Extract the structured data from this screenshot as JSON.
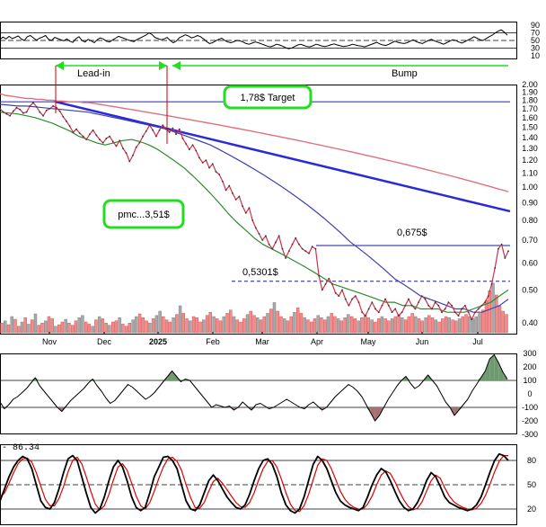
{
  "colors": {
    "price": "#d1304a",
    "ma_long": "#e2707a",
    "ma_mid": "#3f3fb0",
    "ma_short": "#2e8a2e",
    "trend": "#2b2bd6",
    "target_line": "#3a3ae0",
    "volume_up": "#a8a8a8",
    "volume_down": "#f08c8c",
    "box": "#22dd22",
    "arrow": "#22dd22",
    "event_line": "#cc0000",
    "fill_pos": "#6f9a6f",
    "fill_neg": "#a77070",
    "stoch_k": "#000000",
    "stoch_d": "#dd0000",
    "grid": "#c8c8c8"
  },
  "chart_data": [
    {
      "type": "line",
      "name": "rsi-panel",
      "ylim": [
        0,
        100
      ],
      "yticks": [
        "90",
        "70",
        "50",
        "30",
        "10"
      ],
      "levels": [
        70,
        50,
        30
      ],
      "values": [
        53,
        59,
        54,
        61,
        55,
        58,
        62,
        54,
        50,
        60,
        63,
        57,
        51,
        56,
        59,
        63,
        53,
        50,
        58,
        55,
        52,
        49,
        54,
        48,
        45,
        55,
        60,
        50,
        46,
        53,
        49,
        44,
        52,
        57,
        54,
        48,
        46,
        51,
        56,
        61,
        58,
        55,
        52,
        49,
        47,
        52,
        56,
        60,
        64,
        70,
        66,
        58,
        55,
        52,
        54,
        58,
        50,
        44,
        48,
        57,
        61,
        65,
        62,
        57,
        59,
        63,
        60,
        54,
        47,
        42,
        44,
        49,
        53,
        56,
        50,
        46,
        44,
        47,
        50,
        49,
        46,
        42,
        40,
        43,
        46,
        44,
        41,
        38,
        35,
        33,
        36,
        40,
        38,
        35,
        31,
        28,
        30,
        34,
        38,
        40,
        37,
        34,
        33,
        36,
        40,
        38,
        35,
        34,
        36,
        39,
        41,
        38,
        36,
        34,
        35,
        37,
        40,
        38,
        36,
        35,
        33,
        36,
        39,
        42,
        45,
        41,
        38,
        37,
        40,
        44,
        48,
        45,
        43,
        42,
        44,
        48,
        52,
        47,
        44,
        42,
        46,
        50,
        53,
        49,
        46,
        43,
        40,
        44,
        48,
        52,
        50,
        46,
        43,
        47,
        51,
        55,
        60,
        56,
        52,
        50,
        55,
        60,
        64,
        70,
        75,
        78,
        72,
        64
      ]
    },
    {
      "type": "line",
      "name": "price-panel",
      "ylim": [
        0.37,
        2.0
      ],
      "log_scale": true,
      "yticks": [
        "2.00",
        "1.90",
        "1.80",
        "1.70",
        "1.60",
        "1.50",
        "1.40",
        "1.30",
        "1.20",
        "1.10",
        "1.00",
        "0.90",
        "0.80",
        "0.70",
        "0.60",
        "0.50",
        "0.40"
      ],
      "xticks": [
        "Nov",
        "Dec",
        "2025",
        "Feb",
        "Mar",
        "Apr",
        "May",
        "Jun",
        "Jul"
      ],
      "price": [
        1.7,
        1.66,
        1.64,
        1.62,
        1.67,
        1.71,
        1.69,
        1.65,
        1.66,
        1.73,
        1.77,
        1.72,
        1.66,
        1.62,
        1.68,
        1.7,
        1.73,
        1.71,
        1.67,
        1.61,
        1.56,
        1.51,
        1.45,
        1.48,
        1.44,
        1.41,
        1.38,
        1.43,
        1.47,
        1.42,
        1.38,
        1.35,
        1.39,
        1.41,
        1.36,
        1.32,
        1.37,
        1.3,
        1.26,
        1.19,
        1.24,
        1.31,
        1.35,
        1.41,
        1.46,
        1.52,
        1.47,
        1.41,
        1.47,
        1.52,
        1.48,
        1.45,
        1.49,
        1.43,
        1.48,
        1.39,
        1.34,
        1.29,
        1.33,
        1.28,
        1.22,
        1.18,
        1.2,
        1.14,
        1.17,
        1.11,
        1.09,
        1.04,
        0.98,
        1.01,
        0.96,
        0.92,
        0.94,
        0.88,
        0.84,
        0.87,
        0.8,
        0.76,
        0.73,
        0.7,
        0.72,
        0.68,
        0.66,
        0.69,
        0.72,
        0.66,
        0.62,
        0.65,
        0.68,
        0.71,
        0.68,
        0.66,
        0.65,
        0.64,
        0.67,
        0.66,
        0.55,
        0.5,
        0.52,
        0.54,
        0.52,
        0.49,
        0.48,
        0.5,
        0.47,
        0.45,
        0.47,
        0.48,
        0.46,
        0.43,
        0.42,
        0.44,
        0.46,
        0.44,
        0.43,
        0.45,
        0.47,
        0.45,
        0.43,
        0.44,
        0.42,
        0.43,
        0.45,
        0.47,
        0.45,
        0.44,
        0.46,
        0.48,
        0.47,
        0.45,
        0.44,
        0.46,
        0.45,
        0.43,
        0.44,
        0.46,
        0.45,
        0.43,
        0.42,
        0.44,
        0.45,
        0.43,
        0.41,
        0.43,
        0.44,
        0.45,
        0.46,
        0.48,
        0.52,
        0.58,
        0.66,
        0.68,
        0.62,
        0.65
      ],
      "ma_long": [
        1.88,
        1.86,
        1.85,
        1.84,
        1.83,
        1.82,
        1.82,
        1.81,
        1.81,
        1.8,
        1.8,
        1.79,
        1.79,
        1.78,
        1.78,
        1.78,
        1.77,
        1.77,
        1.76,
        1.75,
        1.74,
        1.73,
        1.72,
        1.71,
        1.7,
        1.69,
        1.68,
        1.67,
        1.66,
        1.65,
        1.64,
        1.63,
        1.62,
        1.61,
        1.6,
        1.59,
        1.58,
        1.57,
        1.56,
        1.55,
        1.54,
        1.53,
        1.52,
        1.51,
        1.5,
        1.49,
        1.48,
        1.47,
        1.46,
        1.45,
        1.44,
        1.43,
        1.42,
        1.41,
        1.4,
        1.39,
        1.38,
        1.37,
        1.36,
        1.35,
        1.34,
        1.33,
        1.32,
        1.31,
        1.3,
        1.29,
        1.28,
        1.27,
        1.26,
        1.25,
        1.24,
        1.23,
        1.22,
        1.21,
        1.2,
        1.19,
        1.18,
        1.17,
        1.16,
        1.15,
        1.14,
        1.13,
        1.12,
        1.11,
        1.1,
        1.09,
        1.08,
        1.07,
        1.06,
        1.05,
        1.04,
        1.03,
        1.02,
        1.01,
        1.0,
        0.99,
        0.98,
        0.97
      ],
      "ma_mid": [
        1.75,
        1.74,
        1.73,
        1.73,
        1.72,
        1.71,
        1.7,
        1.69,
        1.68,
        1.67,
        1.66,
        1.64,
        1.62,
        1.6,
        1.58,
        1.56,
        1.54,
        1.52,
        1.5,
        1.48,
        1.45,
        1.42,
        1.39,
        1.36,
        1.33,
        1.29,
        1.25,
        1.21,
        1.17,
        1.13,
        1.09,
        1.05,
        1.01,
        0.97,
        0.93,
        0.89,
        0.85,
        0.81,
        0.77,
        0.73,
        0.69,
        0.66,
        0.63,
        0.6,
        0.57,
        0.54,
        0.52,
        0.5,
        0.48,
        0.47,
        0.46,
        0.45,
        0.44,
        0.44,
        0.43,
        0.43,
        0.44,
        0.45,
        0.47
      ],
      "ma_short": [
        1.66,
        1.65,
        1.64,
        1.62,
        1.6,
        1.57,
        1.54,
        1.5,
        1.46,
        1.41,
        1.38,
        1.35,
        1.33,
        1.35,
        1.37,
        1.38,
        1.36,
        1.33,
        1.29,
        1.24,
        1.19,
        1.14,
        1.08,
        1.02,
        0.96,
        0.9,
        0.84,
        0.79,
        0.75,
        0.71,
        0.68,
        0.66,
        0.64,
        0.62,
        0.6,
        0.58,
        0.56,
        0.54,
        0.52,
        0.51,
        0.5,
        0.49,
        0.48,
        0.47,
        0.46,
        0.46,
        0.45,
        0.45,
        0.44,
        0.44,
        0.44,
        0.43,
        0.43,
        0.43,
        0.44,
        0.45,
        0.46,
        0.48,
        0.5
      ],
      "trend_line": {
        "from": 1.78,
        "to": 0.85
      },
      "target": 1.78,
      "levels": [
        0.675,
        0.5301
      ],
      "volume_heights": [
        0.18,
        0.22,
        0.15,
        0.3,
        0.25,
        0.12,
        0.2,
        0.28,
        0.16,
        0.24,
        0.35,
        0.14,
        0.18,
        0.22,
        0.3,
        0.26,
        0.12,
        0.15,
        0.2,
        0.25,
        0.18,
        0.14,
        0.22,
        0.28,
        0.32,
        0.2,
        0.16,
        0.12,
        0.24,
        0.3,
        0.26,
        0.18,
        0.14,
        0.2,
        0.22,
        0.28,
        0.16,
        0.12,
        0.18,
        0.24,
        0.3,
        0.35,
        0.28,
        0.22,
        0.18,
        0.26,
        0.32,
        0.4,
        0.3,
        0.24,
        0.2,
        0.28,
        0.34,
        0.5,
        0.36,
        0.26,
        0.22,
        0.3,
        0.28,
        0.2,
        0.24,
        0.32,
        0.38,
        0.3,
        0.26,
        0.22,
        0.3,
        0.36,
        0.42,
        0.3,
        0.24,
        0.2,
        0.26,
        0.34,
        0.4,
        0.32,
        0.28,
        0.24,
        0.3,
        0.36,
        0.44,
        0.56,
        0.4,
        0.3,
        0.26,
        0.22,
        0.3,
        0.38,
        0.46,
        0.36,
        0.28,
        0.24,
        0.2,
        0.26,
        0.32,
        0.28,
        0.24,
        0.3,
        0.36,
        0.3,
        0.26,
        0.22,
        0.28,
        0.34,
        0.3,
        0.26,
        0.22,
        0.28,
        0.32,
        0.28,
        0.24,
        0.2,
        0.26,
        0.3,
        0.26,
        0.22,
        0.26,
        0.3,
        0.34,
        0.28,
        0.24,
        0.3,
        0.36,
        0.3,
        0.26,
        0.22,
        0.28,
        0.32,
        0.28,
        0.24,
        0.2,
        0.26,
        0.3,
        0.28,
        0.24,
        0.22,
        0.26,
        0.3,
        0.34,
        0.3,
        0.26,
        0.3,
        0.36,
        0.42,
        0.6,
        0.78,
        0.92,
        0.7,
        0.5,
        0.4,
        0.34
      ],
      "volume_up": [
        0,
        1,
        0,
        1,
        0,
        0,
        1,
        0,
        1,
        0,
        1,
        0,
        0,
        1,
        0,
        0,
        1,
        0,
        0,
        1,
        0,
        0,
        0,
        1,
        1,
        0,
        0,
        1,
        0,
        1,
        0,
        0,
        1,
        0,
        0,
        1,
        0,
        0,
        0,
        1,
        1,
        0,
        0,
        0,
        1,
        0,
        1,
        1,
        0,
        0,
        0,
        1,
        0,
        1,
        0,
        0,
        1,
        0,
        0,
        0,
        1,
        0,
        0,
        1,
        0,
        0,
        1,
        0,
        0,
        1,
        0,
        0,
        0,
        1,
        0,
        0,
        1,
        0,
        0,
        1,
        0,
        1,
        0,
        0,
        1,
        0,
        0,
        1,
        0,
        0,
        1,
        0,
        0,
        0,
        1,
        0,
        0,
        1,
        0,
        0,
        1,
        0,
        0,
        1,
        0,
        0,
        1,
        0,
        0,
        0,
        1,
        0,
        0,
        1,
        0,
        0,
        1,
        0,
        0,
        1,
        0,
        0,
        0,
        1,
        0,
        0,
        1,
        0,
        0,
        1,
        0,
        0,
        0,
        1,
        0,
        0,
        1,
        0,
        0,
        1,
        1,
        1,
        1,
        0,
        0,
        0,
        1
      ]
    },
    {
      "type": "area",
      "name": "cci-panel",
      "ylim": [
        -300,
        300
      ],
      "yticks": [
        "300",
        "200",
        "100",
        "0",
        "-100",
        "-200",
        "-300"
      ],
      "levels": [
        100,
        -100
      ],
      "values": [
        -60,
        -110,
        -80,
        -40,
        -20,
        10,
        40,
        80,
        120,
        60,
        20,
        -20,
        -60,
        -100,
        -130,
        -90,
        -50,
        -20,
        10,
        40,
        80,
        110,
        60,
        20,
        -30,
        -70,
        -50,
        -10,
        30,
        70,
        50,
        20,
        -10,
        -40,
        -20,
        10,
        50,
        90,
        130,
        170,
        130,
        90,
        110,
        100,
        60,
        20,
        -20,
        -60,
        -100,
        -80,
        -90,
        -100,
        -90,
        -120,
        -100,
        -60,
        -90,
        -120,
        -80,
        -70,
        -90,
        -110,
        -100,
        -80,
        -60,
        -40,
        -60,
        -80,
        -100,
        -110,
        -80,
        -60,
        -90,
        -120,
        -100,
        -60,
        -20,
        10,
        40,
        70,
        50,
        20,
        -20,
        -80,
        -140,
        -200,
        -160,
        -100,
        -40,
        10,
        60,
        100,
        130,
        80,
        40,
        60,
        100,
        140,
        100,
        60,
        0,
        -60,
        -100,
        -160,
        -120,
        -80,
        -40,
        20,
        70,
        120,
        170,
        260,
        290,
        230,
        160,
        110
      ]
    },
    {
      "type": "line",
      "name": "stochastic-panel",
      "ylim": [
        0,
        100
      ],
      "yticks": [
        "80",
        "50",
        "20"
      ],
      "levels": [
        80,
        50,
        20
      ],
      "header": [
        "- 86.34"
      ],
      "k": [
        30,
        45,
        60,
        72,
        80,
        85,
        82,
        70,
        50,
        30,
        22,
        20,
        28,
        45,
        65,
        82,
        86,
        80,
        60,
        40,
        22,
        15,
        20,
        35,
        55,
        72,
        80,
        72,
        55,
        35,
        22,
        18,
        22,
        40,
        60,
        72,
        84,
        85,
        80,
        70,
        50,
        30,
        20,
        18,
        25,
        40,
        55,
        62,
        55,
        45,
        35,
        28,
        22,
        20,
        25,
        38,
        55,
        70,
        80,
        82,
        75,
        60,
        40,
        25,
        18,
        15,
        20,
        35,
        55,
        75,
        85,
        80,
        70,
        55,
        40,
        30,
        25,
        22,
        20,
        18,
        22,
        35,
        50,
        62,
        70,
        66,
        55,
        42,
        30,
        22,
        18,
        20,
        28,
        40,
        55,
        65,
        60,
        48,
        35,
        28,
        25,
        22,
        20,
        18,
        20,
        25,
        35,
        50,
        66,
        80,
        88,
        86,
        80
      ],
      "d": [
        35,
        40,
        52,
        65,
        76,
        82,
        83,
        78,
        65,
        48,
        32,
        24,
        24,
        33,
        48,
        66,
        80,
        84,
        76,
        60,
        42,
        26,
        19,
        24,
        38,
        56,
        72,
        76,
        68,
        52,
        36,
        24,
        20,
        28,
        42,
        58,
        72,
        82,
        84,
        79,
        68,
        50,
        34,
        22,
        21,
        28,
        42,
        54,
        58,
        52,
        44,
        36,
        28,
        23,
        22,
        28,
        40,
        56,
        70,
        79,
        80,
        72,
        57,
        40,
        26,
        18,
        17,
        24,
        38,
        56,
        74,
        82,
        80,
        70,
        56,
        42,
        32,
        26,
        22,
        20,
        20,
        26,
        36,
        50,
        62,
        67,
        64,
        54,
        42,
        31,
        23,
        19,
        21,
        29,
        42,
        55,
        62,
        58,
        46,
        36,
        29,
        25,
        22,
        20,
        19,
        21,
        27,
        37,
        51,
        66,
        79,
        86,
        86
      ]
    }
  ],
  "annotations": {
    "target_label": "1,78$ Target",
    "pmc_label": "pmc...3,51$",
    "level_high": "0,675$",
    "level_low": "0,5301$",
    "lead_in": "Lead-in",
    "bump": "Bump"
  }
}
